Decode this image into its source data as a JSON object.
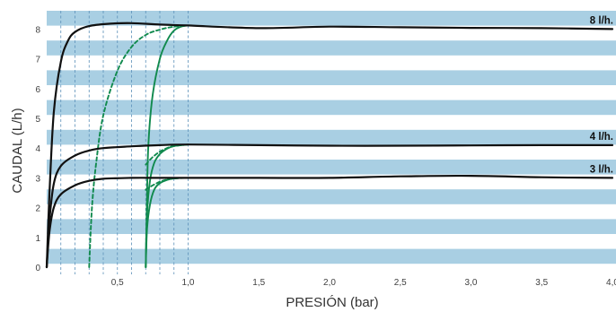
{
  "chart_data": {
    "type": "line",
    "xlabel": "PRESIÓN (bar)",
    "ylabel": "CAUDAL (L/h)",
    "xlim": [
      0,
      4.0
    ],
    "ylim": [
      0,
      8.4
    ],
    "x_ticks": [
      {
        "value": 0.5,
        "label": "0,5"
      },
      {
        "value": 1.0,
        "label": "1,0"
      },
      {
        "value": 1.5,
        "label": "1,5"
      },
      {
        "value": 2.0,
        "label": "2,0"
      },
      {
        "value": 2.5,
        "label": "2,5"
      },
      {
        "value": 3.0,
        "label": "3,0"
      },
      {
        "value": 3.5,
        "label": "3,5"
      },
      {
        "value": 4.0,
        "label": "4,0"
      }
    ],
    "y_ticks": [
      0,
      1,
      2,
      3,
      4,
      5,
      6,
      7,
      8
    ],
    "vertical_gridlines_x": [
      0.1,
      0.2,
      0.3,
      0.4,
      0.5,
      0.6,
      0.7,
      0.8,
      0.9,
      1.0
    ],
    "background_stripes": "horizontal blue bands",
    "colors": {
      "stripe": "#a9cfe3",
      "gridline": "#5a8fb8",
      "black_curve": "#111111",
      "green_curve": "#118a4e"
    },
    "series": [
      {
        "name": "8 l/h.",
        "color": "#111111",
        "style": "solid",
        "points": [
          [
            0,
            0
          ],
          [
            0.02,
            2.5
          ],
          [
            0.05,
            5.2
          ],
          [
            0.1,
            6.9
          ],
          [
            0.15,
            7.6
          ],
          [
            0.2,
            7.9
          ],
          [
            0.3,
            8.1
          ],
          [
            0.45,
            8.18
          ],
          [
            0.6,
            8.2
          ],
          [
            0.8,
            8.15
          ],
          [
            1.0,
            8.12
          ],
          [
            1.5,
            8.03
          ],
          [
            2.0,
            8.08
          ],
          [
            2.5,
            8.06
          ],
          [
            3.0,
            8.04
          ],
          [
            3.5,
            8.03
          ],
          [
            4.0,
            8.0
          ]
        ]
      },
      {
        "name": "4 l/h.",
        "color": "#111111",
        "style": "solid",
        "points": [
          [
            0,
            0
          ],
          [
            0.02,
            1.6
          ],
          [
            0.05,
            2.8
          ],
          [
            0.1,
            3.4
          ],
          [
            0.2,
            3.75
          ],
          [
            0.3,
            3.92
          ],
          [
            0.4,
            4.0
          ],
          [
            0.6,
            4.06
          ],
          [
            0.8,
            4.1
          ],
          [
            1.0,
            4.12
          ],
          [
            1.5,
            4.1
          ],
          [
            2.0,
            4.08
          ],
          [
            2.5,
            4.08
          ],
          [
            3.0,
            4.09
          ],
          [
            3.5,
            4.1
          ],
          [
            4.0,
            4.1
          ]
        ]
      },
      {
        "name": "3 l/h.",
        "color": "#111111",
        "style": "solid",
        "points": [
          [
            0,
            0
          ],
          [
            0.02,
            1.2
          ],
          [
            0.05,
            2.0
          ],
          [
            0.1,
            2.45
          ],
          [
            0.2,
            2.75
          ],
          [
            0.3,
            2.9
          ],
          [
            0.4,
            2.97
          ],
          [
            0.6,
            3.0
          ],
          [
            0.8,
            3.0
          ],
          [
            1.0,
            3.0
          ],
          [
            1.5,
            3.0
          ],
          [
            2.0,
            3.0
          ],
          [
            2.5,
            3.05
          ],
          [
            3.0,
            3.07
          ],
          [
            3.5,
            3.02
          ],
          [
            4.0,
            3.0
          ]
        ]
      },
      {
        "color": "#118a4e",
        "style": "solid",
        "points": [
          [
            0.7,
            0
          ],
          [
            0.71,
            2.5
          ],
          [
            0.72,
            4.2
          ],
          [
            0.75,
            5.8
          ],
          [
            0.8,
            7.0
          ],
          [
            0.85,
            7.6
          ],
          [
            0.9,
            7.95
          ],
          [
            0.95,
            8.08
          ],
          [
            1.0,
            8.12
          ]
        ]
      },
      {
        "color": "#118a4e",
        "style": "dashed",
        "points": [
          [
            0.3,
            0
          ],
          [
            0.32,
            2.0
          ],
          [
            0.35,
            3.5
          ],
          [
            0.4,
            5.1
          ],
          [
            0.5,
            6.6
          ],
          [
            0.6,
            7.4
          ],
          [
            0.7,
            7.8
          ],
          [
            0.8,
            7.98
          ],
          [
            0.9,
            8.08
          ],
          [
            1.0,
            8.12
          ]
        ]
      },
      {
        "color": "#118a4e",
        "style": "solid",
        "points": [
          [
            0.7,
            0
          ],
          [
            0.71,
            1.8
          ],
          [
            0.73,
            2.9
          ],
          [
            0.76,
            3.5
          ],
          [
            0.8,
            3.8
          ],
          [
            0.85,
            3.98
          ],
          [
            0.9,
            4.07
          ],
          [
            1.0,
            4.12
          ]
        ]
      },
      {
        "color": "#118a4e",
        "style": "dashed",
        "points": [
          [
            0.7,
            3.45
          ],
          [
            0.75,
            3.7
          ],
          [
            0.8,
            3.88
          ],
          [
            0.85,
            4.0
          ],
          [
            0.9,
            4.07
          ],
          [
            1.0,
            4.12
          ]
        ]
      },
      {
        "color": "#118a4e",
        "style": "solid",
        "points": [
          [
            0.7,
            0
          ],
          [
            0.71,
            1.3
          ],
          [
            0.73,
            2.1
          ],
          [
            0.76,
            2.6
          ],
          [
            0.8,
            2.82
          ],
          [
            0.85,
            2.93
          ],
          [
            0.9,
            2.98
          ],
          [
            1.0,
            3.0
          ]
        ]
      },
      {
        "color": "#118a4e",
        "style": "dashed",
        "points": [
          [
            0.7,
            2.6
          ],
          [
            0.75,
            2.75
          ],
          [
            0.8,
            2.87
          ],
          [
            0.85,
            2.94
          ],
          [
            0.9,
            2.98
          ],
          [
            1.0,
            3.0
          ]
        ]
      }
    ]
  }
}
